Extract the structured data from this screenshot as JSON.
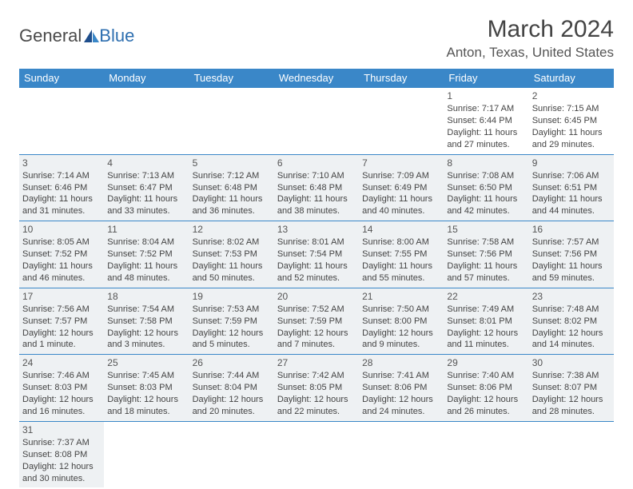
{
  "brand": {
    "part1": "General",
    "part2": "Blue"
  },
  "title": "March 2024",
  "subtitle": "Anton, Texas, United States",
  "header_bg": "#3a87c8",
  "shaded_bg": "#eef1f3",
  "border_color": "#3a87c8",
  "weekdays": [
    "Sunday",
    "Monday",
    "Tuesday",
    "Wednesday",
    "Thursday",
    "Friday",
    "Saturday"
  ],
  "weeks": [
    [
      null,
      null,
      null,
      null,
      null,
      {
        "n": "1",
        "sr": "Sunrise: 7:17 AM",
        "ss": "Sunset: 6:44 PM",
        "dl1": "Daylight: 11 hours",
        "dl2": "and 27 minutes."
      },
      {
        "n": "2",
        "sr": "Sunrise: 7:15 AM",
        "ss": "Sunset: 6:45 PM",
        "dl1": "Daylight: 11 hours",
        "dl2": "and 29 minutes."
      }
    ],
    [
      {
        "n": "3",
        "sr": "Sunrise: 7:14 AM",
        "ss": "Sunset: 6:46 PM",
        "dl1": "Daylight: 11 hours",
        "dl2": "and 31 minutes.",
        "s": true
      },
      {
        "n": "4",
        "sr": "Sunrise: 7:13 AM",
        "ss": "Sunset: 6:47 PM",
        "dl1": "Daylight: 11 hours",
        "dl2": "and 33 minutes.",
        "s": true
      },
      {
        "n": "5",
        "sr": "Sunrise: 7:12 AM",
        "ss": "Sunset: 6:48 PM",
        "dl1": "Daylight: 11 hours",
        "dl2": "and 36 minutes.",
        "s": true
      },
      {
        "n": "6",
        "sr": "Sunrise: 7:10 AM",
        "ss": "Sunset: 6:48 PM",
        "dl1": "Daylight: 11 hours",
        "dl2": "and 38 minutes.",
        "s": true
      },
      {
        "n": "7",
        "sr": "Sunrise: 7:09 AM",
        "ss": "Sunset: 6:49 PM",
        "dl1": "Daylight: 11 hours",
        "dl2": "and 40 minutes.",
        "s": true
      },
      {
        "n": "8",
        "sr": "Sunrise: 7:08 AM",
        "ss": "Sunset: 6:50 PM",
        "dl1": "Daylight: 11 hours",
        "dl2": "and 42 minutes.",
        "s": true
      },
      {
        "n": "9",
        "sr": "Sunrise: 7:06 AM",
        "ss": "Sunset: 6:51 PM",
        "dl1": "Daylight: 11 hours",
        "dl2": "and 44 minutes.",
        "s": true
      }
    ],
    [
      {
        "n": "10",
        "sr": "Sunrise: 8:05 AM",
        "ss": "Sunset: 7:52 PM",
        "dl1": "Daylight: 11 hours",
        "dl2": "and 46 minutes.",
        "s": true
      },
      {
        "n": "11",
        "sr": "Sunrise: 8:04 AM",
        "ss": "Sunset: 7:52 PM",
        "dl1": "Daylight: 11 hours",
        "dl2": "and 48 minutes.",
        "s": true
      },
      {
        "n": "12",
        "sr": "Sunrise: 8:02 AM",
        "ss": "Sunset: 7:53 PM",
        "dl1": "Daylight: 11 hours",
        "dl2": "and 50 minutes.",
        "s": true
      },
      {
        "n": "13",
        "sr": "Sunrise: 8:01 AM",
        "ss": "Sunset: 7:54 PM",
        "dl1": "Daylight: 11 hours",
        "dl2": "and 52 minutes.",
        "s": true
      },
      {
        "n": "14",
        "sr": "Sunrise: 8:00 AM",
        "ss": "Sunset: 7:55 PM",
        "dl1": "Daylight: 11 hours",
        "dl2": "and 55 minutes.",
        "s": true
      },
      {
        "n": "15",
        "sr": "Sunrise: 7:58 AM",
        "ss": "Sunset: 7:56 PM",
        "dl1": "Daylight: 11 hours",
        "dl2": "and 57 minutes.",
        "s": true
      },
      {
        "n": "16",
        "sr": "Sunrise: 7:57 AM",
        "ss": "Sunset: 7:56 PM",
        "dl1": "Daylight: 11 hours",
        "dl2": "and 59 minutes.",
        "s": true
      }
    ],
    [
      {
        "n": "17",
        "sr": "Sunrise: 7:56 AM",
        "ss": "Sunset: 7:57 PM",
        "dl1": "Daylight: 12 hours",
        "dl2": "and 1 minute.",
        "s": true
      },
      {
        "n": "18",
        "sr": "Sunrise: 7:54 AM",
        "ss": "Sunset: 7:58 PM",
        "dl1": "Daylight: 12 hours",
        "dl2": "and 3 minutes.",
        "s": true
      },
      {
        "n": "19",
        "sr": "Sunrise: 7:53 AM",
        "ss": "Sunset: 7:59 PM",
        "dl1": "Daylight: 12 hours",
        "dl2": "and 5 minutes.",
        "s": true
      },
      {
        "n": "20",
        "sr": "Sunrise: 7:52 AM",
        "ss": "Sunset: 7:59 PM",
        "dl1": "Daylight: 12 hours",
        "dl2": "and 7 minutes.",
        "s": true
      },
      {
        "n": "21",
        "sr": "Sunrise: 7:50 AM",
        "ss": "Sunset: 8:00 PM",
        "dl1": "Daylight: 12 hours",
        "dl2": "and 9 minutes.",
        "s": true
      },
      {
        "n": "22",
        "sr": "Sunrise: 7:49 AM",
        "ss": "Sunset: 8:01 PM",
        "dl1": "Daylight: 12 hours",
        "dl2": "and 11 minutes.",
        "s": true
      },
      {
        "n": "23",
        "sr": "Sunrise: 7:48 AM",
        "ss": "Sunset: 8:02 PM",
        "dl1": "Daylight: 12 hours",
        "dl2": "and 14 minutes.",
        "s": true
      }
    ],
    [
      {
        "n": "24",
        "sr": "Sunrise: 7:46 AM",
        "ss": "Sunset: 8:03 PM",
        "dl1": "Daylight: 12 hours",
        "dl2": "and 16 minutes.",
        "s": true
      },
      {
        "n": "25",
        "sr": "Sunrise: 7:45 AM",
        "ss": "Sunset: 8:03 PM",
        "dl1": "Daylight: 12 hours",
        "dl2": "and 18 minutes.",
        "s": true
      },
      {
        "n": "26",
        "sr": "Sunrise: 7:44 AM",
        "ss": "Sunset: 8:04 PM",
        "dl1": "Daylight: 12 hours",
        "dl2": "and 20 minutes.",
        "s": true
      },
      {
        "n": "27",
        "sr": "Sunrise: 7:42 AM",
        "ss": "Sunset: 8:05 PM",
        "dl1": "Daylight: 12 hours",
        "dl2": "and 22 minutes.",
        "s": true
      },
      {
        "n": "28",
        "sr": "Sunrise: 7:41 AM",
        "ss": "Sunset: 8:06 PM",
        "dl1": "Daylight: 12 hours",
        "dl2": "and 24 minutes.",
        "s": true
      },
      {
        "n": "29",
        "sr": "Sunrise: 7:40 AM",
        "ss": "Sunset: 8:06 PM",
        "dl1": "Daylight: 12 hours",
        "dl2": "and 26 minutes.",
        "s": true
      },
      {
        "n": "30",
        "sr": "Sunrise: 7:38 AM",
        "ss": "Sunset: 8:07 PM",
        "dl1": "Daylight: 12 hours",
        "dl2": "and 28 minutes.",
        "s": true
      }
    ],
    [
      {
        "n": "31",
        "sr": "Sunrise: 7:37 AM",
        "ss": "Sunset: 8:08 PM",
        "dl1": "Daylight: 12 hours",
        "dl2": "and 30 minutes.",
        "s": true
      },
      null,
      null,
      null,
      null,
      null,
      null
    ]
  ]
}
